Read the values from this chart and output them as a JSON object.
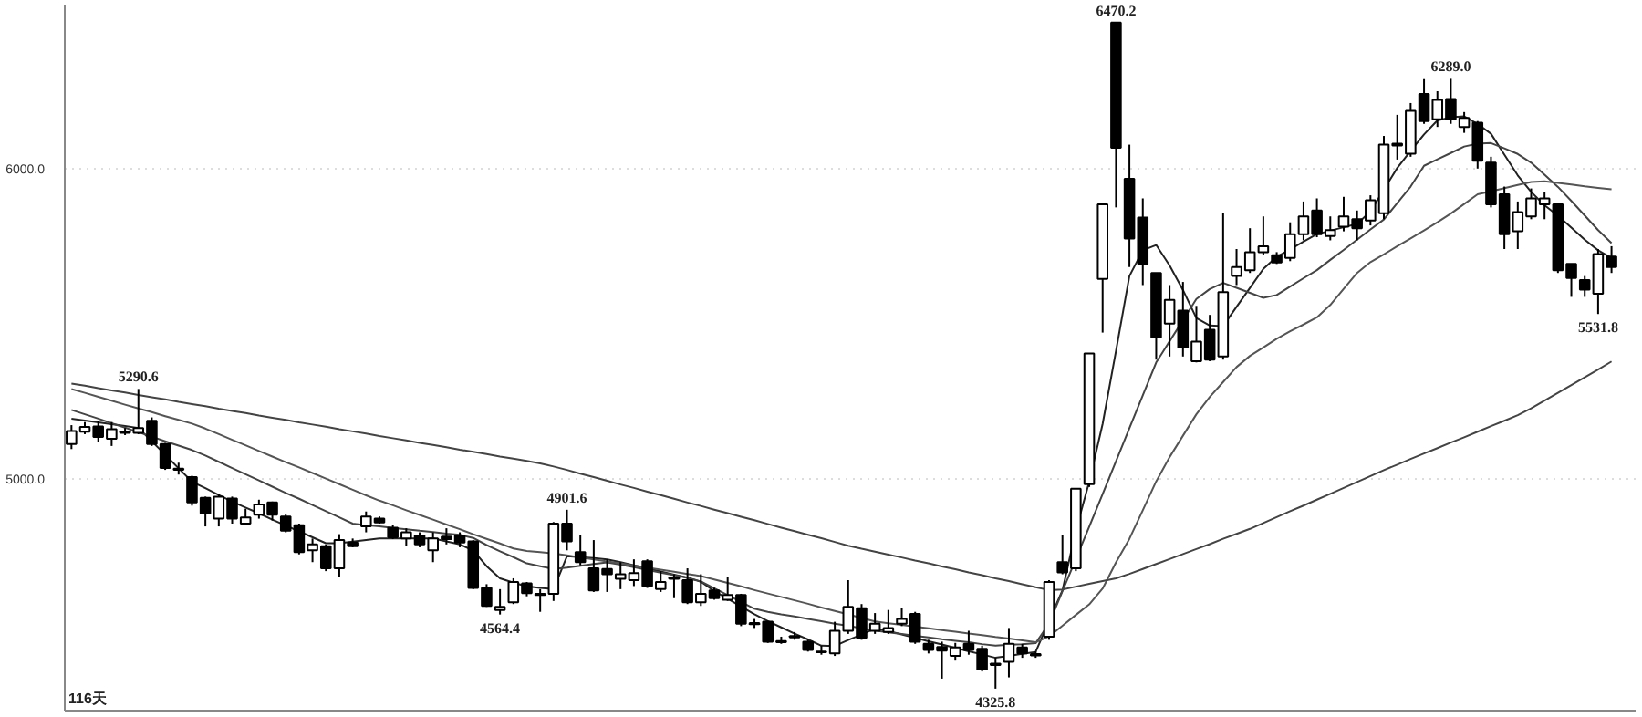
{
  "chart_data": {
    "type": "candlestick",
    "color": "#000000",
    "categories": [
      null,
      null,
      null,
      null,
      null,
      null,
      null,
      null,
      null,
      null,
      null,
      null,
      null,
      null,
      null,
      null,
      null,
      null,
      null,
      null,
      null,
      null,
      null,
      null,
      null,
      null,
      null,
      null,
      null,
      null,
      null,
      null,
      null,
      null,
      null,
      null,
      null,
      null,
      null,
      null,
      null,
      null,
      null,
      null,
      null,
      null,
      null,
      null,
      null,
      null,
      null,
      null,
      null,
      null,
      null,
      null,
      null,
      null,
      null,
      null,
      null,
      null,
      null,
      null,
      null,
      null,
      null,
      null,
      null,
      null,
      null,
      null,
      null,
      null,
      null,
      null,
      null,
      null,
      null,
      null,
      null,
      null,
      null,
      null,
      null,
      null,
      null,
      null,
      null,
      null,
      null,
      null,
      null,
      null,
      null,
      null,
      null,
      null,
      null,
      null,
      null,
      null,
      null,
      null,
      null,
      null,
      null,
      null,
      null,
      null,
      null,
      null,
      null,
      null,
      null,
      null
    ],
    "ohlc": [
      [
        5113,
        5174,
        5097,
        5155
      ],
      [
        5153,
        5184,
        5145,
        5168
      ],
      [
        5170,
        5188,
        5120,
        5136
      ],
      [
        5130,
        5184,
        5107,
        5161
      ],
      [
        5149,
        5165,
        5142,
        5153
      ],
      [
        5149,
        5290.6,
        5145,
        5165
      ],
      [
        5188,
        5199,
        5107,
        5113
      ],
      [
        5113,
        5117,
        5030,
        5036
      ],
      [
        5034,
        5053,
        5015,
        5030
      ],
      [
        5007,
        5011,
        4915,
        4925
      ],
      [
        4940,
        4944,
        4848,
        4890
      ],
      [
        4873,
        4953,
        4848,
        4944
      ],
      [
        4938,
        4944,
        4857,
        4873
      ],
      [
        4857,
        4905,
        4854,
        4877
      ],
      [
        4886,
        4934,
        4873,
        4919
      ],
      [
        4925,
        4928,
        4867,
        4886
      ],
      [
        4880,
        4886,
        4829,
        4834
      ],
      [
        4852,
        4857,
        4758,
        4765
      ],
      [
        4771,
        4809,
        4733,
        4790
      ],
      [
        4784,
        4790,
        4704,
        4713
      ],
      [
        4713,
        4823,
        4685,
        4804
      ],
      [
        4796,
        4809,
        4781,
        4784
      ],
      [
        4848,
        4896,
        4829,
        4880
      ],
      [
        4873,
        4880,
        4857,
        4861
      ],
      [
        4844,
        4852,
        4807,
        4813
      ],
      [
        4809,
        4842,
        4784,
        4829
      ],
      [
        4819,
        4829,
        4781,
        4790
      ],
      [
        4771,
        4829,
        4733,
        4809
      ],
      [
        4815,
        4842,
        4790,
        4807
      ],
      [
        4819,
        4829,
        4781,
        4796
      ],
      [
        4800,
        4804,
        4646,
        4650
      ],
      [
        4650,
        4662,
        4589,
        4592
      ],
      [
        4579,
        4646,
        4564.4,
        4589
      ],
      [
        4604,
        4681,
        4598,
        4669
      ],
      [
        4665,
        4669,
        4623,
        4633
      ],
      [
        4627,
        4646,
        4573,
        4631
      ],
      [
        4631,
        4862,
        4608,
        4857
      ],
      [
        4857,
        4901.6,
        4771,
        4800
      ],
      [
        4765,
        4819,
        4723,
        4733
      ],
      [
        4713,
        4804,
        4637,
        4642
      ],
      [
        4711,
        4742,
        4637,
        4694
      ],
      [
        4679,
        4733,
        4646,
        4694
      ],
      [
        4675,
        4742,
        4656,
        4698
      ],
      [
        4736,
        4742,
        4650,
        4656
      ],
      [
        4646,
        4704,
        4637,
        4669
      ],
      [
        4679,
        4694,
        4617,
        4683
      ],
      [
        4675,
        4713,
        4598,
        4604
      ],
      [
        4604,
        4694,
        4592,
        4631
      ],
      [
        4642,
        4650,
        4612,
        4617
      ],
      [
        4612,
        4685,
        4608,
        4627
      ],
      [
        4627,
        4631,
        4527,
        4535
      ],
      [
        4537,
        4550,
        4521,
        4533
      ],
      [
        4541,
        4544,
        4473,
        4477
      ],
      [
        4479,
        4493,
        4470,
        4475
      ],
      [
        4491,
        4508,
        4483,
        4495
      ],
      [
        4477,
        4483,
        4445,
        4450
      ],
      [
        4445,
        4464,
        4435,
        4443
      ],
      [
        4439,
        4541,
        4431,
        4512
      ],
      [
        4512,
        4675,
        4502,
        4589
      ],
      [
        4585,
        4598,
        4483,
        4489
      ],
      [
        4512,
        4569,
        4502,
        4535
      ],
      [
        4508,
        4579,
        4502,
        4521
      ],
      [
        4535,
        4585,
        4527,
        4550
      ],
      [
        4566,
        4573,
        4470,
        4477
      ],
      [
        4470,
        4483,
        4439,
        4450
      ],
      [
        4460,
        4477,
        4358,
        4448
      ],
      [
        4431,
        4473,
        4416,
        4458
      ],
      [
        4470,
        4512,
        4435,
        4450
      ],
      [
        4454,
        4464,
        4381,
        4387
      ],
      [
        4406,
        4425,
        4325.8,
        4402
      ],
      [
        4412,
        4521,
        4362,
        4470
      ],
      [
        4458,
        4470,
        4425,
        4439
      ],
      [
        4437,
        4445,
        4425,
        4433
      ],
      [
        4493,
        4675,
        4483,
        4669
      ],
      [
        4733,
        4819,
        4694,
        4700
      ],
      [
        4713,
        4969,
        4704,
        4969
      ],
      [
        4984,
        5405,
        4975,
        5405
      ],
      [
        5645,
        5885,
        5472,
        5885
      ],
      [
        6470.2,
        6470.2,
        5875,
        6067
      ],
      [
        5967,
        6077,
        5683,
        5775
      ],
      [
        5842,
        5904,
        5625,
        5693
      ],
      [
        5664,
        5664,
        5385,
        5457
      ],
      [
        5501,
        5625,
        5395,
        5577
      ],
      [
        5543,
        5635,
        5395,
        5424
      ],
      [
        5380,
        5558,
        5376,
        5443
      ],
      [
        5481,
        5529,
        5380,
        5385
      ],
      [
        5395,
        5856,
        5385,
        5602
      ],
      [
        5654,
        5741,
        5625,
        5683
      ],
      [
        5673,
        5808,
        5664,
        5731
      ],
      [
        5731,
        5846,
        5721,
        5750
      ],
      [
        5721,
        5731,
        5693,
        5698
      ],
      [
        5712,
        5827,
        5702,
        5789
      ],
      [
        5789,
        5894,
        5769,
        5846
      ],
      [
        5865,
        5904,
        5779,
        5789
      ],
      [
        5783,
        5846,
        5769,
        5802
      ],
      [
        5813,
        5909,
        5798,
        5846
      ],
      [
        5837,
        5865,
        5769,
        5808
      ],
      [
        5833,
        5914,
        5817,
        5898
      ],
      [
        5856,
        6105,
        5837,
        6077
      ],
      [
        6080,
        6173,
        6029,
        6074
      ],
      [
        6048,
        6211,
        6038,
        6186
      ],
      [
        6240,
        6288,
        6144,
        6153
      ],
      [
        6159,
        6249,
        6134,
        6221
      ],
      [
        6224,
        6289.0,
        6144,
        6159
      ],
      [
        6134,
        6182,
        6115,
        6163
      ],
      [
        6148,
        6153,
        6000,
        6025
      ],
      [
        6019,
        6038,
        5875,
        5885
      ],
      [
        5917,
        5942,
        5741,
        5789
      ],
      [
        5798,
        5894,
        5741,
        5860
      ],
      [
        5846,
        5936,
        5837,
        5904
      ],
      [
        5885,
        5923,
        5837,
        5904
      ],
      [
        5885,
        5885,
        5664,
        5673
      ],
      [
        5693,
        5693,
        5587,
        5648
      ],
      [
        5641,
        5654,
        5587,
        5610
      ],
      [
        5597,
        5741,
        5531.8,
        5725
      ],
      [
        5717,
        5750,
        5664,
        5683
      ]
    ],
    "series": [
      {
        "type": "line",
        "color": "#222222",
        "values": [
          5195,
          5189,
          5183,
          5177,
          5171,
          5165,
          5122,
          5079,
          5035,
          4992,
          4971,
          4949,
          4928,
          4909,
          4890,
          4870,
          4851,
          4832,
          4813,
          4794,
          4794,
          4799,
          4804,
          4809,
          4809,
          4809,
          4809,
          4809,
          4800,
          4790,
          4771,
          4720,
          4681,
          4667,
          4655,
          4650,
          4646,
          4752,
          4749,
          4746,
          4742,
          4733,
          4723,
          4713,
          4703,
          4693,
          4683,
          4670,
          4640,
          4615,
          4590,
          4565,
          4543,
          4523,
          4503,
          4484,
          4464,
          4463,
          4482,
          4500,
          4519,
          4511,
          4500,
          4489,
          4478,
          4468,
          4457,
          4446,
          4436,
          4425,
          4431,
          4438,
          4444,
          4544,
          4642,
          4834,
          4992,
          5178,
          5413,
          5654,
          5737,
          5754,
          5688,
          5609,
          5519,
          5495,
          5493,
          5555,
          5616,
          5677,
          5716,
          5740,
          5765,
          5789,
          5800,
          5811,
          5822,
          5862,
          5932,
          6002,
          6057,
          6110,
          6155,
          6165,
          6168,
          6144,
          6112,
          6045,
          5978,
          5925,
          5882,
          5848,
          5810,
          5771,
          5737,
          5712
        ]
      },
      {
        "type": "line",
        "color": "#444444",
        "values": [
          5223,
          5209,
          5195,
          5180,
          5166,
          5151,
          5137,
          5122,
          5108,
          5094,
          5076,
          5056,
          5036,
          5016,
          4996,
          4976,
          4956,
          4937,
          4917,
          4897,
          4877,
          4857,
          4852,
          4848,
          4843,
          4839,
          4834,
          4830,
          4825,
          4821,
          4811,
          4788,
          4768,
          4749,
          4729,
          4720,
          4711,
          4715,
          4721,
          4727,
          4732,
          4725,
          4717,
          4708,
          4699,
          4691,
          4682,
          4671,
          4649,
          4627,
          4605,
          4583,
          4573,
          4565,
          4558,
          4550,
          4543,
          4535,
          4528,
          4520,
          4513,
          4507,
          4502,
          4496,
          4491,
          4485,
          4480,
          4475,
          4469,
          4464,
          4467,
          4469,
          4472,
          4535,
          4639,
          4743,
          4847,
          4952,
          5058,
          5164,
          5270,
          5376,
          5444,
          5512,
          5580,
          5612,
          5632,
          5616,
          5600,
          5584,
          5593,
          5620,
          5647,
          5673,
          5706,
          5738,
          5771,
          5804,
          5836,
          5889,
          5942,
          6009,
          6030,
          6050,
          6071,
          6080,
          6082,
          6065,
          6047,
          6019,
          5980,
          5941,
          5896,
          5849,
          5802,
          5760
        ]
      },
      {
        "type": "line",
        "color": "#555555",
        "values": [
          5290,
          5278,
          5265,
          5253,
          5240,
          5228,
          5216,
          5203,
          5191,
          5179,
          5163,
          5145,
          5127,
          5109,
          5091,
          5073,
          5055,
          5038,
          5020,
          5002,
          4984,
          4966,
          4948,
          4931,
          4916,
          4900,
          4885,
          4870,
          4854,
          4839,
          4823,
          4808,
          4793,
          4777,
          4769,
          4765,
          4761,
          4755,
          4748,
          4742,
          4735,
          4729,
          4722,
          4715,
          4709,
          4702,
          4695,
          4688,
          4677,
          4666,
          4655,
          4643,
          4632,
          4621,
          4610,
          4599,
          4587,
          4576,
          4565,
          4553,
          4542,
          4536,
          4531,
          4525,
          4520,
          4514,
          4509,
          4503,
          4498,
          4492,
          4487,
          4481,
          4475,
          4494,
          4528,
          4563,
          4597,
          4648,
          4732,
          4808,
          4900,
          4993,
          5071,
          5140,
          5209,
          5265,
          5313,
          5361,
          5397,
          5424,
          5452,
          5476,
          5498,
          5521,
          5561,
          5613,
          5664,
          5699,
          5724,
          5750,
          5775,
          5801,
          5827,
          5855,
          5886,
          5917,
          5927,
          5937,
          5947,
          5957,
          5959,
          5954,
          5949,
          5943,
          5938,
          5933
        ]
      },
      {
        "type": "line",
        "color": "#444444",
        "values": [
          5308,
          5301,
          5293,
          5286,
          5279,
          5271,
          5264,
          5257,
          5249,
          5242,
          5235,
          5227,
          5220,
          5213,
          5205,
          5198,
          5191,
          5183,
          5176,
          5169,
          5161,
          5154,
          5147,
          5139,
          5132,
          5125,
          5117,
          5110,
          5103,
          5095,
          5088,
          5081,
          5073,
          5066,
          5059,
          5051,
          5041,
          5030,
          5018,
          5007,
          4995,
          4983,
          4972,
          4960,
          4949,
          4937,
          4925,
          4914,
          4902,
          4891,
          4879,
          4868,
          4856,
          4844,
          4833,
          4821,
          4810,
          4798,
          4786,
          4776,
          4767,
          4757,
          4748,
          4738,
          4729,
          4719,
          4710,
          4700,
          4691,
          4681,
          4672,
          4662,
          4652,
          4643,
          4645,
          4654,
          4663,
          4672,
          4681,
          4695,
          4711,
          4727,
          4743,
          4759,
          4775,
          4791,
          4808,
          4824,
          4840,
          4859,
          4878,
          4897,
          4915,
          4934,
          4953,
          4972,
          4991,
          5010,
          5029,
          5047,
          5065,
          5083,
          5100,
          5118,
          5135,
          5153,
          5171,
          5188,
          5206,
          5228,
          5253,
          5278,
          5303,
          5328,
          5353,
          5379
        ]
      }
    ],
    "ylim": [
      4255,
      6528
    ],
    "yticks": [
      {
        "value": 5000,
        "label": "5000.0"
      },
      {
        "value": 6000,
        "label": "6000.0"
      }
    ],
    "tick_labels": "y",
    "grid": "y",
    "annotations": [
      {
        "text": "5290.6",
        "y": 5290.6
      },
      {
        "text": "4564.4",
        "y": 4564.4
      },
      {
        "text": "4901.6",
        "y": 4901.6
      },
      {
        "text": "4325.8",
        "y": 4325.8
      },
      {
        "text": "6470.2",
        "y": 6470.2
      },
      {
        "text": "6289.0",
        "y": 6289.0
      },
      {
        "text": "5531.8",
        "y": 5531.8
      },
      "116天"
    ]
  }
}
